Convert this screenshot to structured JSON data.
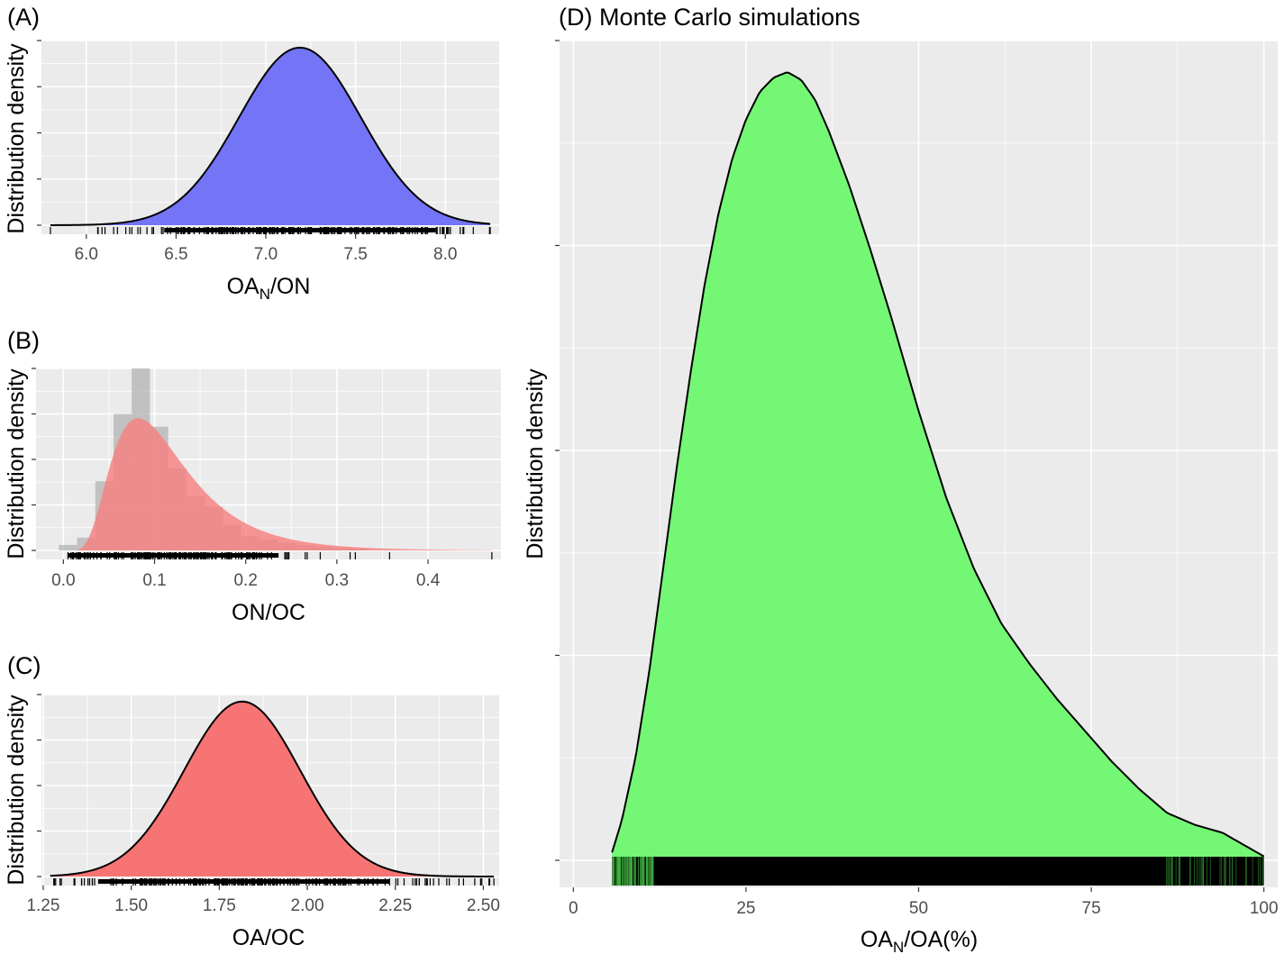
{
  "chart_data": [
    {
      "id": "A",
      "type": "area",
      "title": "(A)",
      "ylabel": "Distribution density",
      "xlabel_main": "OA",
      "xlabel_sub": "N",
      "xlabel_tail": "/ON",
      "xlim": [
        5.75,
        8.3
      ],
      "ylim": [
        0,
        1.04
      ],
      "xticks": [
        "6.0",
        "6.5",
        "7.0",
        "7.5",
        "8.0"
      ],
      "xtick_values": [
        6.0,
        6.5,
        7.0,
        7.5,
        8.0
      ],
      "dist": {
        "kind": "normal",
        "mean": 7.19,
        "sd": 0.34,
        "min": 5.8,
        "max": 8.25
      },
      "fill": "#7474f7",
      "rug": {
        "min": 5.8,
        "max": 8.25,
        "mean": 7.19,
        "sd": 0.42,
        "n": 220
      }
    },
    {
      "id": "B",
      "type": "area",
      "title": "(B)",
      "ylabel": "Distribution density",
      "xlabel_main": "ON/OC",
      "xlabel_sub": "",
      "xlabel_tail": "",
      "xlim": [
        -0.03,
        0.48
      ],
      "ylim": [
        0,
        1.06
      ],
      "xticks": [
        "0.0",
        "0.1",
        "0.2",
        "0.3",
        "0.4"
      ],
      "xtick_values": [
        0.0,
        0.1,
        0.2,
        0.3,
        0.4
      ],
      "dist": {
        "kind": "lognormal",
        "mu": -2.25,
        "sigma": 0.5,
        "min": 0.005,
        "max": 0.47
      },
      "fill": "#f77e7e",
      "histogram": {
        "fill": "#b3b3b3",
        "bins": [
          {
            "x0": -0.005,
            "x1": 0.015,
            "h": 0.03
          },
          {
            "x0": 0.015,
            "x1": 0.035,
            "h": 0.07
          },
          {
            "x0": 0.035,
            "x1": 0.055,
            "h": 0.38
          },
          {
            "x0": 0.055,
            "x1": 0.075,
            "h": 0.75
          },
          {
            "x0": 0.075,
            "x1": 0.095,
            "h": 1.0
          },
          {
            "x0": 0.095,
            "x1": 0.115,
            "h": 0.68
          },
          {
            "x0": 0.115,
            "x1": 0.135,
            "h": 0.45
          },
          {
            "x0": 0.135,
            "x1": 0.155,
            "h": 0.3
          },
          {
            "x0": 0.155,
            "x1": 0.175,
            "h": 0.24
          },
          {
            "x0": 0.175,
            "x1": 0.195,
            "h": 0.14
          },
          {
            "x0": 0.195,
            "x1": 0.215,
            "h": 0.08
          },
          {
            "x0": 0.215,
            "x1": 0.235,
            "h": 0.06
          },
          {
            "x0": 0.235,
            "x1": 0.255,
            "h": 0.04
          },
          {
            "x0": 0.255,
            "x1": 0.275,
            "h": 0.03
          },
          {
            "x0": 0.275,
            "x1": 0.295,
            "h": 0.02
          },
          {
            "x0": 0.295,
            "x1": 0.315,
            "h": 0.015
          },
          {
            "x0": 0.315,
            "x1": 0.335,
            "h": 0.01
          }
        ]
      },
      "rug": {
        "min": 0.005,
        "max": 0.47,
        "mean": 0.11,
        "sd": 0.07,
        "n": 180
      }
    },
    {
      "id": "C",
      "type": "area",
      "title": "(C)",
      "ylabel": "Distribution density",
      "xlabel_main": "OA/OC",
      "xlabel_sub": "",
      "xlabel_tail": "",
      "xlim": [
        1.245,
        2.545
      ],
      "ylim": [
        0,
        1.04
      ],
      "xticks": [
        "1.25",
        "1.50",
        "1.75",
        "2.00",
        "2.25",
        "2.50"
      ],
      "xtick_values": [
        1.25,
        1.5,
        1.75,
        2.0,
        2.25,
        2.5
      ],
      "dist": {
        "kind": "normal",
        "mean": 1.815,
        "sd": 0.165,
        "min": 1.27,
        "max": 2.53
      },
      "fill": "#f77474",
      "rug": {
        "min": 1.28,
        "max": 2.53,
        "mean": 1.82,
        "sd": 0.23,
        "n": 230
      }
    },
    {
      "id": "D",
      "type": "area",
      "title": "(D) Monte Carlo simulations",
      "ylabel": "Distribution density",
      "xlabel_main": "OA",
      "xlabel_sub": "N",
      "xlabel_tail": "/OA(%)",
      "xlim": [
        -2,
        102
      ],
      "ylim": [
        0,
        1.04
      ],
      "xticks": [
        "0",
        "25",
        "50",
        "75",
        "100"
      ],
      "xtick_values": [
        0,
        25,
        50,
        75,
        100
      ],
      "dist": {
        "kind": "points",
        "points": [
          [
            5.6,
            0.01
          ],
          [
            7,
            0.05
          ],
          [
            9,
            0.13
          ],
          [
            11,
            0.24
          ],
          [
            13,
            0.37
          ],
          [
            15,
            0.5
          ],
          [
            17,
            0.62
          ],
          [
            19,
            0.73
          ],
          [
            21,
            0.82
          ],
          [
            23,
            0.89
          ],
          [
            25,
            0.94
          ],
          [
            27,
            0.975
          ],
          [
            29,
            0.993
          ],
          [
            31,
            1.0
          ],
          [
            33,
            0.99
          ],
          [
            35,
            0.965
          ],
          [
            37,
            0.925
          ],
          [
            40,
            0.855
          ],
          [
            43,
            0.775
          ],
          [
            46,
            0.69
          ],
          [
            50,
            0.57
          ],
          [
            54,
            0.46
          ],
          [
            58,
            0.37
          ],
          [
            62,
            0.3
          ],
          [
            66,
            0.25
          ],
          [
            70,
            0.205
          ],
          [
            74,
            0.165
          ],
          [
            78,
            0.125
          ],
          [
            82,
            0.09
          ],
          [
            86,
            0.06
          ],
          [
            90,
            0.045
          ],
          [
            94,
            0.035
          ],
          [
            98,
            0.015
          ],
          [
            100,
            0.005
          ]
        ]
      },
      "fill": "#74f774",
      "rug": {
        "min": 5.6,
        "max": 100,
        "mean": 38,
        "sd": 17,
        "n": 900,
        "dense": true
      }
    }
  ]
}
